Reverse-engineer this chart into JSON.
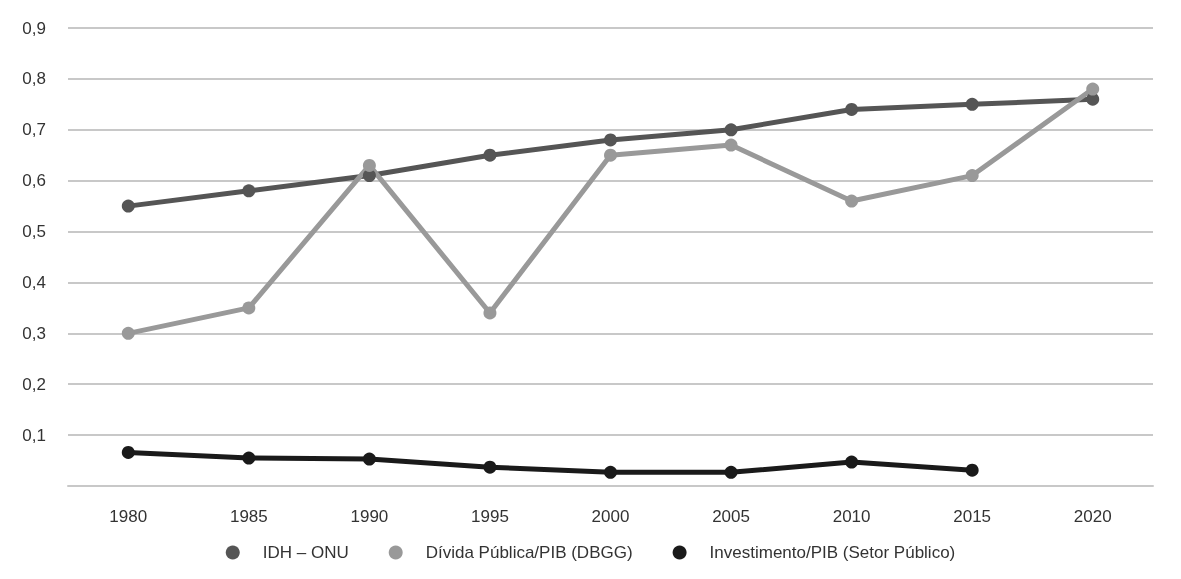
{
  "chart_data": {
    "type": "line",
    "categories": [
      "1980",
      "1985",
      "1990",
      "1995",
      "2000",
      "2005",
      "2010",
      "2015",
      "2020"
    ],
    "series": [
      {
        "name": "IDH – ONU",
        "color": "#555555",
        "values": [
          0.55,
          0.58,
          0.61,
          0.65,
          0.68,
          0.7,
          0.74,
          0.75,
          0.76
        ]
      },
      {
        "name": "Dívida Pública/PIB (DBGG)",
        "color": "#999999",
        "values": [
          0.3,
          0.35,
          0.63,
          0.34,
          0.65,
          0.67,
          0.56,
          0.61,
          0.78
        ]
      },
      {
        "name": "Investimento/PIB (Setor Público)",
        "color": "#1a1a1a",
        "values": [
          0.066,
          0.055,
          0.053,
          0.037,
          0.027,
          0.027,
          0.047,
          0.031,
          null
        ]
      }
    ],
    "ylim": [
      0,
      0.9
    ],
    "yticks": [
      {
        "value": 0,
        "label": null
      },
      {
        "value": 0.1,
        "label": "0,1"
      },
      {
        "value": 0.2,
        "label": "0,2"
      },
      {
        "value": 0.3,
        "label": "0,3"
      },
      {
        "value": 0.4,
        "label": "0,4"
      },
      {
        "value": 0.5,
        "label": "0,5"
      },
      {
        "value": 0.6,
        "label": "0,6"
      },
      {
        "value": 0.7,
        "label": "0,7"
      },
      {
        "value": 0.8,
        "label": "0,8"
      },
      {
        "value": 0.9,
        "label": "0,9"
      }
    ],
    "grid": "y",
    "legend": "bottom",
    "marker": "circle",
    "line_style": "solid"
  }
}
